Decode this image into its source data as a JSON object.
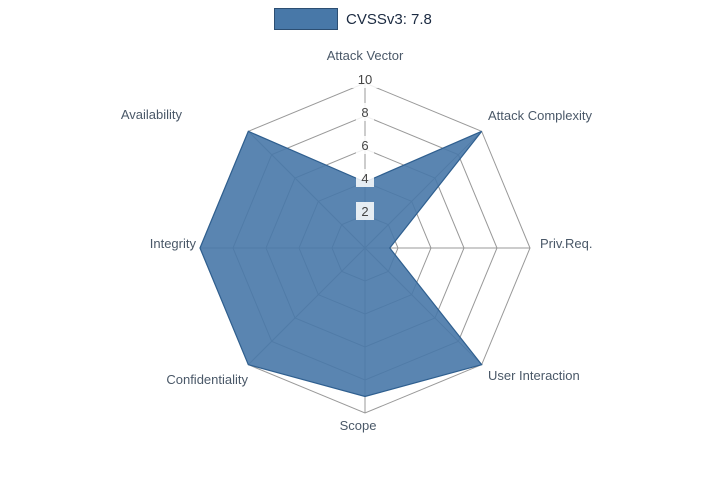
{
  "legend": {
    "label": "CVSSv3: 7.8"
  },
  "chart_data": {
    "type": "radar",
    "title": "CVSSv3: 7.8",
    "categories": [
      "Attack Vector",
      "Attack Complexity",
      "Priv.Req.",
      "User Interaction",
      "Scope",
      "Confidentiality",
      "Integrity",
      "Availability"
    ],
    "series": [
      {
        "name": "CVSSv3: 7.8",
        "color": "#4878a8",
        "stroke": "#2f5f8f",
        "values": [
          4,
          10,
          1.5,
          10,
          9,
          10,
          10,
          10
        ]
      }
    ],
    "range": [
      0,
      10
    ],
    "ticks": [
      2,
      4,
      6,
      8,
      10
    ],
    "tick_labels": [
      "2",
      "4",
      "6",
      "8",
      "10"
    ],
    "grid": true,
    "legend_position": "top"
  },
  "colors": {
    "grid": "#999999",
    "axis_label": "#4a5868",
    "tick_label": "#444444",
    "legend_text": "#1b2a41"
  }
}
